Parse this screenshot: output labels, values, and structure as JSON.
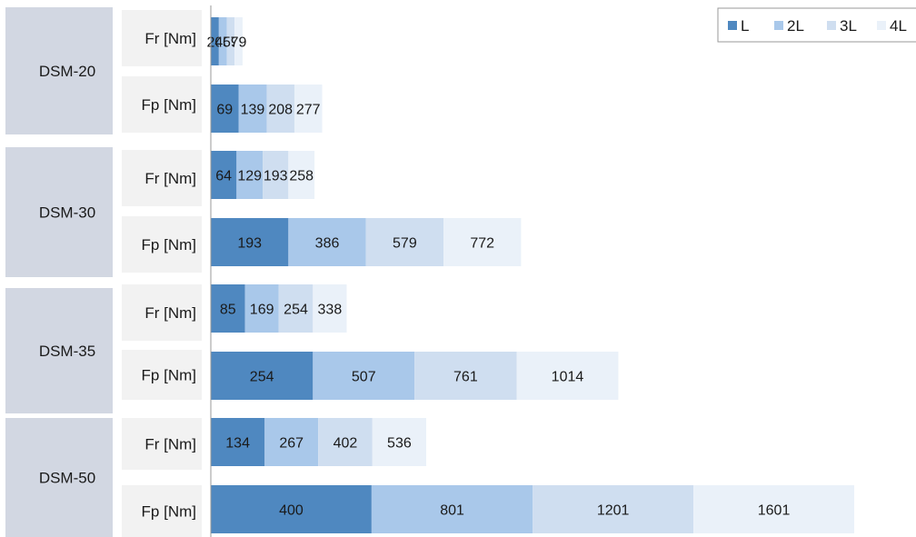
{
  "chart_data": {
    "type": "bar",
    "orientation": "horizontal",
    "stacking": "overlay",
    "xlim": [
      0,
      1601
    ],
    "grid": false,
    "legend_position": "top-right",
    "series": [
      {
        "name": "L",
        "color": "#4f88c0"
      },
      {
        "name": "2L",
        "color": "#a9c8ea"
      },
      {
        "name": "3L",
        "color": "#cfdef0"
      },
      {
        "name": "4L",
        "color": "#eaf1f9"
      }
    ],
    "groups": [
      {
        "label": "DSM-20",
        "rows": [
          {
            "metric": "Fr [Nm]",
            "values": [
              20,
              40,
              59,
              79
            ]
          },
          {
            "metric": "Fp [Nm]",
            "values": [
              69,
              139,
              208,
              277
            ]
          }
        ]
      },
      {
        "label": "DSM-30",
        "rows": [
          {
            "metric": "Fr [Nm]",
            "values": [
              64,
              129,
              193,
              258
            ]
          },
          {
            "metric": "Fp [Nm]",
            "values": [
              193,
              386,
              579,
              772
            ]
          }
        ]
      },
      {
        "label": "DSM-35",
        "rows": [
          {
            "metric": "Fr [Nm]",
            "values": [
              85,
              169,
              254,
              338
            ]
          },
          {
            "metric": "Fp [Nm]",
            "values": [
              254,
              507,
              761,
              1014
            ]
          }
        ]
      },
      {
        "label": "DSM-50",
        "rows": [
          {
            "metric": "Fr [Nm]",
            "values": [
              134,
              267,
              402,
              536
            ]
          },
          {
            "metric": "Fp [Nm]",
            "values": [
              400,
              801,
              1201,
              1601
            ]
          }
        ]
      }
    ]
  }
}
